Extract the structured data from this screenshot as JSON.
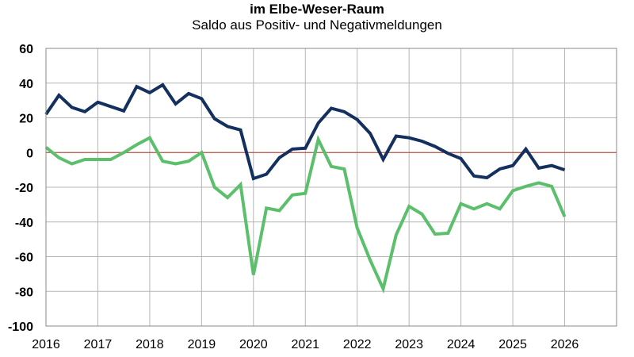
{
  "chart_data": {
    "type": "line",
    "title": "im Elbe-Weser-Raum",
    "subtitle": "Saldo aus Positiv- und Negativmeldungen",
    "xlabel": "",
    "ylabel": "",
    "ylim": [
      -100,
      60
    ],
    "xlim": [
      2016,
      2027
    ],
    "yticks": [
      "60",
      "40",
      "20",
      "0",
      "-20",
      "-40",
      "-60",
      "-80",
      "-100"
    ],
    "xticks": [
      "2016",
      "2017",
      "2018",
      "2019",
      "2020",
      "2021",
      "2022",
      "2023",
      "2024",
      "2025",
      "2026"
    ],
    "grid": true,
    "legend": "none",
    "zero_line_color": "#c0392b",
    "series": [
      {
        "color": "#13305e",
        "x": [
          2016.0,
          2016.25,
          2016.5,
          2016.75,
          2017.0,
          2017.25,
          2017.5,
          2017.75,
          2018.0,
          2018.25,
          2018.5,
          2018.75,
          2019.0,
          2019.25,
          2019.5,
          2019.75,
          2020.0,
          2020.25,
          2020.5,
          2020.75,
          2021.0,
          2021.25,
          2021.5,
          2021.75,
          2022.0,
          2022.25,
          2022.5,
          2022.75,
          2023.0,
          2023.25,
          2023.5,
          2023.75,
          2024.0,
          2024.25,
          2024.5,
          2024.75,
          2025.0,
          2025.25,
          2025.5,
          2025.75,
          2026.0
        ],
        "values": [
          22,
          33,
          26,
          23.5,
          29,
          26.5,
          24,
          38,
          34.5,
          39,
          28,
          34,
          31,
          19.5,
          15,
          13,
          -15,
          -12.5,
          -3,
          2,
          2.5,
          17,
          25.5,
          23.5,
          19,
          11,
          -4,
          9.5,
          8.5,
          6.5,
          3.5,
          -0.5,
          -3.5,
          -13.5,
          -14.5,
          -9.5,
          -7.5,
          2,
          -9,
          -7.5,
          -10
        ]
      },
      {
        "color": "#5cbf6b",
        "x": [
          2016.0,
          2016.25,
          2016.5,
          2016.75,
          2017.0,
          2017.25,
          2017.5,
          2017.75,
          2018.0,
          2018.25,
          2018.5,
          2018.75,
          2019.0,
          2019.25,
          2019.5,
          2019.75,
          2020.0,
          2020.25,
          2020.5,
          2020.75,
          2021.0,
          2021.25,
          2021.5,
          2021.75,
          2022.0,
          2022.25,
          2022.5,
          2022.75,
          2023.0,
          2023.25,
          2023.5,
          2023.75,
          2024.0,
          2024.25,
          2024.5,
          2024.75,
          2025.0,
          2025.25,
          2025.5,
          2025.75,
          2026.0
        ],
        "values": [
          3,
          -3,
          -6.5,
          -4,
          -4,
          -4,
          0,
          4.5,
          8.5,
          -5,
          -6.5,
          -5,
          0,
          -20,
          -26,
          -18.5,
          -70.5,
          -32,
          -33.5,
          -24.5,
          -23.5,
          7.5,
          -8,
          -9.5,
          -43.5,
          -62,
          -78.5,
          -47.5,
          -31,
          -35.5,
          -47,
          -46.5,
          -29.5,
          -32.5,
          -29.5,
          -32.5,
          -22,
          -19.5,
          -17.5,
          -19.5,
          -37
        ]
      }
    ]
  }
}
